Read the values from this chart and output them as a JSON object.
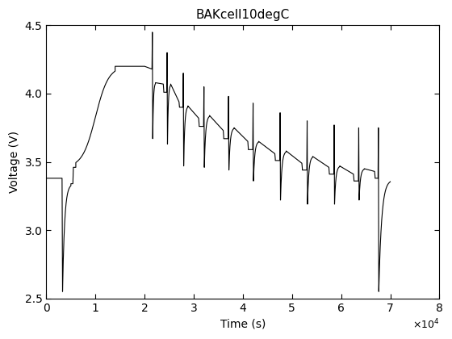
{
  "title": "BAKcell10degC",
  "xlabel": "Time (s)",
  "ylabel": "Voltage (V)",
  "xlim": [
    0,
    80000
  ],
  "ylim": [
    2.5,
    4.5
  ],
  "xticks": [
    0,
    10000,
    20000,
    30000,
    40000,
    50000,
    60000,
    70000,
    80000
  ],
  "yticks": [
    2.5,
    3.0,
    3.5,
    4.0,
    4.5
  ],
  "line_color": "#000000",
  "line_width": 0.8,
  "bg_color": "#ffffff"
}
